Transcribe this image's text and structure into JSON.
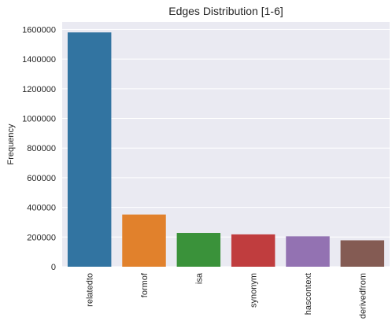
{
  "chart_data": {
    "type": "bar",
    "title": "Edges Distribution [1-6]",
    "xlabel": "",
    "ylabel": "Frequency",
    "categories": [
      "relatedto",
      "formof",
      "isa",
      "synonym",
      "hascontext",
      "derivedfrom"
    ],
    "values": [
      1580000,
      352000,
      228000,
      218000,
      205000,
      178000
    ],
    "colors": [
      "#3274a1",
      "#e1812c",
      "#3a923a",
      "#c03d3e",
      "#9372b2",
      "#845b53"
    ],
    "ylim": [
      0,
      1650000
    ],
    "yticks": [
      0,
      200000,
      400000,
      600000,
      800000,
      1000000,
      1200000,
      1400000,
      1600000
    ],
    "ytick_labels": [
      "0",
      "200000",
      "400000",
      "600000",
      "800000",
      "1000000",
      "1200000",
      "1400000",
      "1600000"
    ],
    "grid": true,
    "background": "#eaeaf2"
  }
}
